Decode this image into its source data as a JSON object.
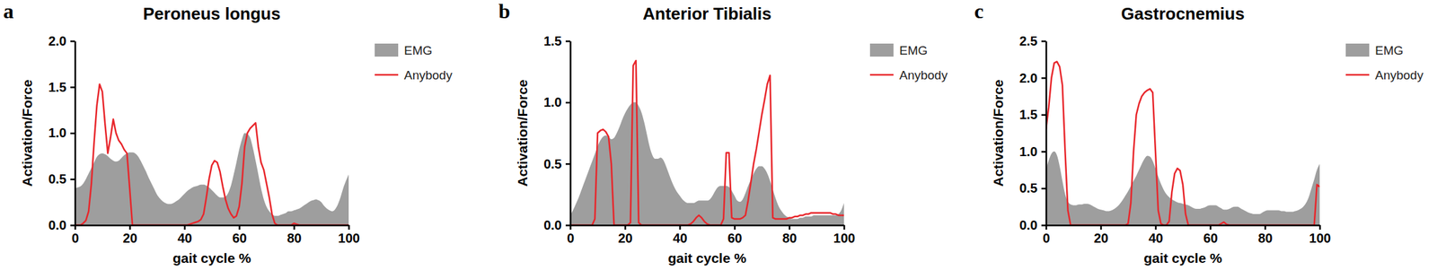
{
  "chart_data": [
    {
      "type": "line",
      "title": "Peroneus longus",
      "annotations": [
        "a"
      ],
      "x_label": "gait cycle %",
      "y_label": "Activation/Force",
      "xlim": [
        0,
        100
      ],
      "xticks": [
        0,
        20,
        40,
        60,
        80,
        100
      ],
      "ylim": [
        0,
        2
      ],
      "yticks": [
        {
          "value": 0,
          "label": "0.0"
        },
        0.5,
        {
          "value": 1,
          "label": "1.0"
        },
        {
          "value": 1.5,
          "label": "1.5"
        },
        {
          "value": 2,
          "label": "2.0"
        }
      ],
      "grid": false,
      "legend": "right",
      "x": [
        0,
        1,
        2,
        3,
        4,
        5,
        6,
        7,
        8,
        9,
        10,
        11,
        12,
        13,
        14,
        15,
        16,
        17,
        18,
        19,
        20,
        21,
        22,
        23,
        24,
        25,
        26,
        27,
        28,
        29,
        30,
        31,
        32,
        33,
        34,
        35,
        36,
        37,
        38,
        39,
        40,
        41,
        42,
        43,
        44,
        45,
        46,
        47,
        48,
        49,
        50,
        51,
        52,
        53,
        54,
        55,
        56,
        57,
        58,
        59,
        60,
        61,
        62,
        63,
        64,
        65,
        66,
        67,
        68,
        69,
        70,
        71,
        72,
        73,
        74,
        75,
        76,
        77,
        78,
        79,
        80,
        81,
        82,
        83,
        84,
        85,
        86,
        87,
        88,
        89,
        90,
        91,
        92,
        93,
        94,
        95,
        96,
        97,
        98,
        99,
        100
      ],
      "series": [
        {
          "name": "EMG",
          "type": "area",
          "color": "#9e9e9e",
          "values": [
            0.4,
            0.41,
            0.42,
            0.45,
            0.5,
            0.56,
            0.62,
            0.68,
            0.74,
            0.77,
            0.78,
            0.77,
            0.75,
            0.72,
            0.7,
            0.69,
            0.7,
            0.73,
            0.76,
            0.78,
            0.79,
            0.79,
            0.78,
            0.75,
            0.7,
            0.64,
            0.58,
            0.51,
            0.45,
            0.39,
            0.33,
            0.29,
            0.26,
            0.24,
            0.23,
            0.23,
            0.24,
            0.26,
            0.28,
            0.31,
            0.34,
            0.37,
            0.39,
            0.41,
            0.42,
            0.43,
            0.44,
            0.44,
            0.43,
            0.41,
            0.38,
            0.35,
            0.32,
            0.3,
            0.3,
            0.31,
            0.35,
            0.43,
            0.55,
            0.68,
            0.82,
            0.93,
            1.0,
            0.99,
            0.95,
            0.84,
            0.7,
            0.55,
            0.4,
            0.28,
            0.2,
            0.15,
            0.12,
            0.1,
            0.1,
            0.11,
            0.12,
            0.13,
            0.15,
            0.15,
            0.16,
            0.17,
            0.18,
            0.2,
            0.22,
            0.24,
            0.26,
            0.27,
            0.28,
            0.27,
            0.25,
            0.21,
            0.18,
            0.16,
            0.15,
            0.17,
            0.22,
            0.3,
            0.4,
            0.48,
            0.55
          ]
        },
        {
          "name": "Anybody",
          "type": "line",
          "color": "#e8262b",
          "values": [
            0,
            0,
            0,
            0.02,
            0.05,
            0.15,
            0.45,
            0.9,
            1.3,
            1.53,
            1.45,
            1.1,
            0.78,
            0.95,
            1.15,
            1.0,
            0.92,
            0.88,
            0.82,
            0.78,
            0.4,
            0,
            0,
            0,
            0,
            0,
            0,
            0,
            0,
            0,
            0,
            0,
            0,
            0,
            0,
            0,
            0,
            0,
            0,
            0,
            0,
            0,
            0.01,
            0.02,
            0.03,
            0.04,
            0.06,
            0.12,
            0.3,
            0.5,
            0.65,
            0.7,
            0.68,
            0.58,
            0.42,
            0.28,
            0.18,
            0.12,
            0.08,
            0.1,
            0.2,
            0.45,
            0.85,
            1.0,
            1.05,
            1.08,
            1.11,
            0.85,
            0.68,
            0.6,
            0.45,
            0.3,
            0.12,
            0.02,
            0,
            0,
            0,
            0,
            0,
            0,
            0.02,
            0.01,
            0,
            0,
            0,
            0,
            0,
            0,
            0,
            0,
            0,
            0,
            0,
            0,
            0,
            0,
            0,
            0,
            0,
            0,
            0
          ]
        }
      ]
    },
    {
      "type": "line",
      "title": "Anterior Tibialis",
      "annotations": [
        "b"
      ],
      "x_label": "gait cycle %",
      "y_label": "Activation/Force",
      "xlim": [
        0,
        100
      ],
      "xticks": [
        0,
        20,
        40,
        60,
        80,
        100
      ],
      "ylim": [
        0,
        1.5
      ],
      "yticks": [
        {
          "value": 0,
          "label": "0.0"
        },
        0.5,
        {
          "value": 1,
          "label": "1.0"
        },
        1.5
      ],
      "grid": false,
      "legend": "right",
      "x": [
        0,
        1,
        2,
        3,
        4,
        5,
        6,
        7,
        8,
        9,
        10,
        11,
        12,
        13,
        14,
        15,
        16,
        17,
        18,
        19,
        20,
        21,
        22,
        23,
        24,
        25,
        26,
        27,
        28,
        29,
        30,
        31,
        32,
        33,
        34,
        35,
        36,
        37,
        38,
        39,
        40,
        41,
        42,
        43,
        44,
        45,
        46,
        47,
        48,
        49,
        50,
        51,
        52,
        53,
        54,
        55,
        56,
        57,
        58,
        59,
        60,
        61,
        62,
        63,
        64,
        65,
        66,
        67,
        68,
        69,
        70,
        71,
        72,
        73,
        74,
        75,
        76,
        77,
        78,
        79,
        80,
        81,
        82,
        83,
        84,
        85,
        86,
        87,
        88,
        89,
        90,
        91,
        92,
        93,
        94,
        95,
        96,
        97,
        98,
        99,
        100
      ],
      "series": [
        {
          "name": "EMG",
          "type": "area",
          "color": "#9e9e9e",
          "values": [
            0.08,
            0.12,
            0.17,
            0.22,
            0.28,
            0.34,
            0.4,
            0.46,
            0.52,
            0.58,
            0.64,
            0.69,
            0.72,
            0.73,
            0.72,
            0.7,
            0.71,
            0.75,
            0.8,
            0.86,
            0.91,
            0.95,
            0.98,
            1.0,
            1.0,
            0.97,
            0.92,
            0.84,
            0.74,
            0.64,
            0.57,
            0.54,
            0.54,
            0.55,
            0.53,
            0.48,
            0.42,
            0.36,
            0.31,
            0.27,
            0.24,
            0.21,
            0.19,
            0.18,
            0.18,
            0.18,
            0.19,
            0.2,
            0.2,
            0.2,
            0.2,
            0.21,
            0.24,
            0.28,
            0.31,
            0.32,
            0.32,
            0.32,
            0.31,
            0.28,
            0.24,
            0.2,
            0.19,
            0.21,
            0.26,
            0.32,
            0.37,
            0.42,
            0.46,
            0.48,
            0.48,
            0.46,
            0.42,
            0.36,
            0.29,
            0.22,
            0.16,
            0.12,
            0.09,
            0.07,
            0.06,
            0.05,
            0.05,
            0.05,
            0.06,
            0.06,
            0.07,
            0.07,
            0.07,
            0.08,
            0.08,
            0.08,
            0.08,
            0.08,
            0.08,
            0.08,
            0.08,
            0.08,
            0.09,
            0.12,
            0.18
          ]
        },
        {
          "name": "Anybody",
          "type": "line",
          "color": "#e8262b",
          "values": [
            0,
            0,
            0,
            0,
            0,
            0,
            0,
            0,
            0,
            0.05,
            0.75,
            0.77,
            0.78,
            0.76,
            0.72,
            0.5,
            0,
            0,
            0,
            0,
            0,
            0,
            0.02,
            1.3,
            1.34,
            0.02,
            0,
            0,
            0,
            0,
            0,
            0,
            0,
            0,
            0,
            0,
            0,
            0,
            0,
            0,
            0,
            0,
            0,
            0,
            0.01,
            0.03,
            0.06,
            0.08,
            0.06,
            0.03,
            0.01,
            0,
            0,
            0,
            0,
            0,
            0.05,
            0.59,
            0.59,
            0.06,
            0.05,
            0.05,
            0.05,
            0.06,
            0.08,
            0.2,
            0.35,
            0.5,
            0.62,
            0.76,
            0.9,
            1.02,
            1.15,
            1.22,
            0.06,
            0.05,
            0.05,
            0.05,
            0.05,
            0.05,
            0.06,
            0.06,
            0.07,
            0.07,
            0.08,
            0.08,
            0.09,
            0.09,
            0.1,
            0.1,
            0.1,
            0.1,
            0.1,
            0.1,
            0.1,
            0.1,
            0.09,
            0.09,
            0.08,
            0.08,
            0.08
          ]
        }
      ]
    },
    {
      "type": "line",
      "title": "Gastrocnemius",
      "annotations": [
        "c"
      ],
      "x_label": "gait cycle %",
      "y_label": "Activation/Force",
      "xlim": [
        0,
        100
      ],
      "xticks": [
        0,
        20,
        40,
        60,
        80,
        100
      ],
      "ylim": [
        0,
        2.5
      ],
      "yticks": [
        {
          "value": 0,
          "label": "0.0"
        },
        0.5,
        {
          "value": 1,
          "label": "1.0"
        },
        1.5,
        {
          "value": 2,
          "label": "2.0"
        },
        2.5
      ],
      "grid": false,
      "legend": "right",
      "x": [
        0,
        1,
        2,
        3,
        4,
        5,
        6,
        7,
        8,
        9,
        10,
        11,
        12,
        13,
        14,
        15,
        16,
        17,
        18,
        19,
        20,
        21,
        22,
        23,
        24,
        25,
        26,
        27,
        28,
        29,
        30,
        31,
        32,
        33,
        34,
        35,
        36,
        37,
        38,
        39,
        40,
        41,
        42,
        43,
        44,
        45,
        46,
        47,
        48,
        49,
        50,
        51,
        52,
        53,
        54,
        55,
        56,
        57,
        58,
        59,
        60,
        61,
        62,
        63,
        64,
        65,
        66,
        67,
        68,
        69,
        70,
        71,
        72,
        73,
        74,
        75,
        76,
        77,
        78,
        79,
        80,
        81,
        82,
        83,
        84,
        85,
        86,
        87,
        88,
        89,
        90,
        91,
        92,
        93,
        94,
        95,
        96,
        97,
        98,
        99,
        100
      ],
      "series": [
        {
          "name": "EMG",
          "type": "area",
          "color": "#9e9e9e",
          "values": [
            0.75,
            0.88,
            0.97,
            1.0,
            0.95,
            0.8,
            0.6,
            0.42,
            0.32,
            0.28,
            0.27,
            0.27,
            0.28,
            0.28,
            0.29,
            0.29,
            0.28,
            0.26,
            0.24,
            0.22,
            0.21,
            0.2,
            0.19,
            0.19,
            0.2,
            0.22,
            0.25,
            0.29,
            0.34,
            0.4,
            0.46,
            0.53,
            0.6,
            0.67,
            0.75,
            0.83,
            0.9,
            0.94,
            0.93,
            0.87,
            0.77,
            0.66,
            0.56,
            0.48,
            0.42,
            0.38,
            0.35,
            0.33,
            0.31,
            0.3,
            0.29,
            0.28,
            0.27,
            0.25,
            0.23,
            0.22,
            0.22,
            0.23,
            0.24,
            0.26,
            0.27,
            0.27,
            0.27,
            0.25,
            0.23,
            0.21,
            0.21,
            0.22,
            0.24,
            0.25,
            0.25,
            0.23,
            0.21,
            0.19,
            0.17,
            0.16,
            0.15,
            0.15,
            0.15,
            0.17,
            0.19,
            0.2,
            0.2,
            0.2,
            0.2,
            0.2,
            0.19,
            0.19,
            0.18,
            0.18,
            0.18,
            0.19,
            0.2,
            0.22,
            0.25,
            0.3,
            0.38,
            0.5,
            0.62,
            0.75,
            0.83
          ]
        },
        {
          "name": "Anybody",
          "type": "line",
          "color": "#e8262b",
          "values": [
            1.3,
            1.6,
            2.0,
            2.2,
            2.22,
            2.15,
            1.9,
            1.0,
            0.2,
            0,
            0,
            0,
            0,
            0,
            0,
            0,
            0,
            0,
            0,
            0,
            0,
            0,
            0,
            0,
            0,
            0,
            0,
            0,
            0,
            0,
            0.02,
            0.3,
            1.0,
            1.5,
            1.65,
            1.75,
            1.8,
            1.83,
            1.85,
            1.8,
            1.0,
            0.2,
            0.02,
            0,
            0,
            0.05,
            0.45,
            0.7,
            0.77,
            0.74,
            0.55,
            0.15,
            0,
            0,
            0,
            0,
            0,
            0,
            0,
            0,
            0,
            0,
            0,
            0,
            0.02,
            0.04,
            0.01,
            0,
            0,
            0,
            0,
            0,
            0,
            0,
            0,
            0,
            0,
            0,
            0,
            0,
            0,
            0,
            0,
            0,
            0,
            0,
            0,
            0,
            0,
            0,
            0,
            0,
            0,
            0,
            0,
            0,
            0,
            0,
            0,
            0.55,
            0.52
          ]
        }
      ]
    }
  ]
}
